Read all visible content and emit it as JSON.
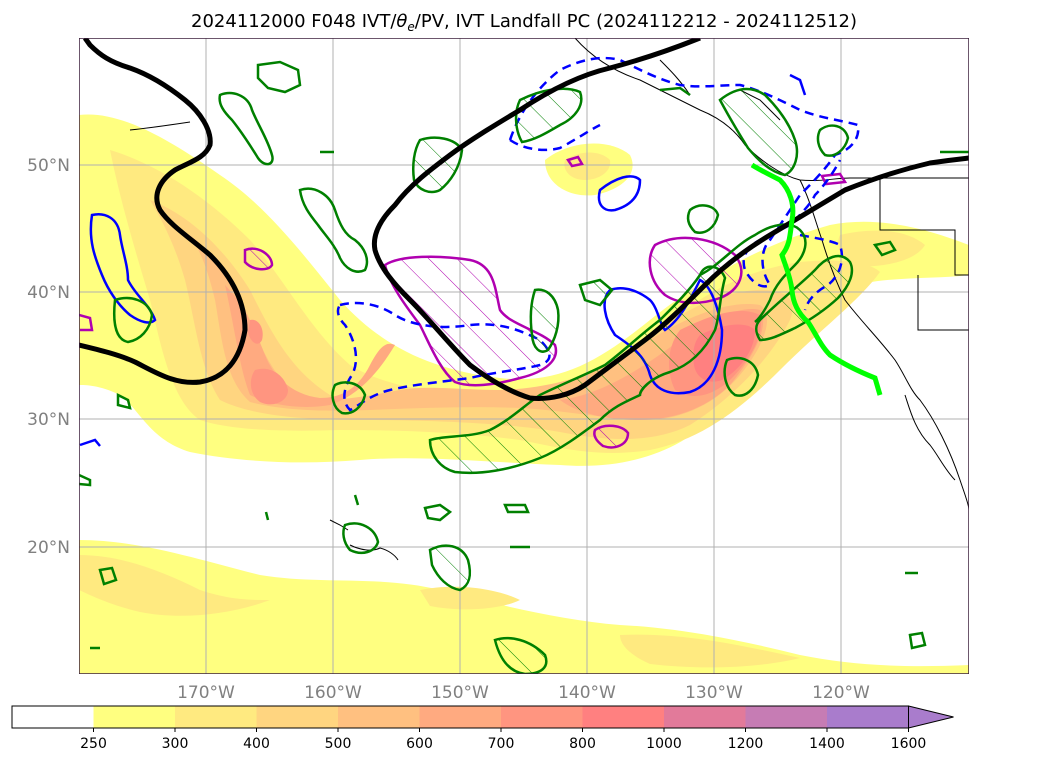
{
  "title": {
    "prefix": "2024112000 F048 IVT/",
    "theta": "θ",
    "theta_sub": "e",
    "suffix": "/PV, IVT Landfall PC (2024112212 - 2024112512)"
  },
  "map": {
    "lat_labels": [
      "50°N",
      "40°N",
      "30°N",
      "20°N"
    ],
    "lon_labels": [
      "170°W",
      "160°W",
      "150°W",
      "140°W",
      "130°W",
      "120°W"
    ]
  },
  "colorbar": {
    "labels": [
      "250",
      "300",
      "400",
      "500",
      "600",
      "700",
      "800",
      "1000",
      "1200",
      "1400",
      "1600"
    ],
    "colors": [
      "#ffffff",
      "#ffff80",
      "#ffea80",
      "#ffd580",
      "#ffc080",
      "#ffaa80",
      "#ff9580",
      "#ff8080",
      "#e27a9a",
      "#c67cb4",
      "#a97ccc"
    ],
    "extend": "max"
  },
  "colors": {
    "ivt_contour_legend_note": "",
    "pv_green": "#008000",
    "theta_magenta": "#b000b0",
    "blue": "#0000ff",
    "landfall_line": "#00ff00",
    "thick_contour": "#000000"
  }
}
